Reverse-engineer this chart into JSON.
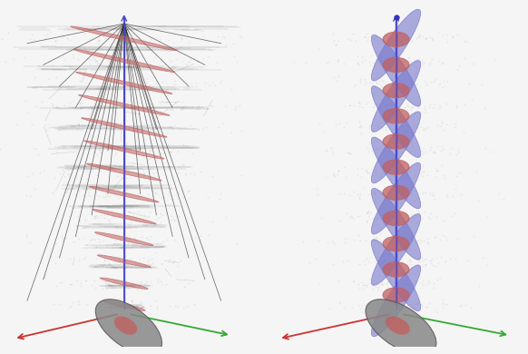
{
  "background_color": "#f5f5f5",
  "fig_width": 5.82,
  "fig_height": 3.9,
  "dpi": 100,
  "left_panel": {
    "red_ellipse_color": "#c06060",
    "blue_line_color": "#4444cc",
    "scatter_color": "#aaaaaa",
    "axis_red": "#cc3333",
    "axis_green": "#33aa33",
    "axis_blue": "#4444cc"
  },
  "right_panel": {
    "blue_ellipse_color": "#7777cc",
    "red_ellipse_color": "#c06060",
    "blue_line_color": "#4444cc",
    "scatter_color": "#aaaaaa",
    "axis_red": "#cc3333",
    "axis_green": "#33aa33",
    "axis_blue": "#4444cc"
  },
  "gray_ellipse_color": "#888888",
  "gray_ellipse_alpha": 0.85
}
